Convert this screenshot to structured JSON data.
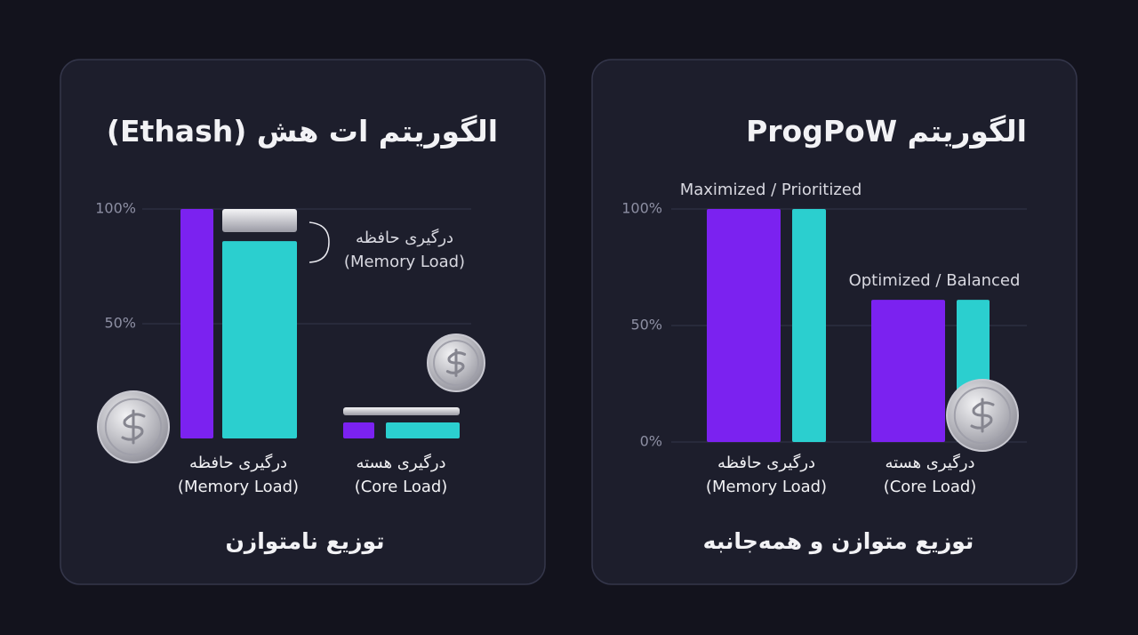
{
  "chart_data": [
    {
      "type": "bar",
      "title": "الگوریتم ات هش (Ethash)",
      "categories": [
        [
          "درگیری حافظه",
          "(Memory Load)"
        ],
        [
          "درگیری هسته",
          "(Core Load)"
        ]
      ],
      "series": [
        {
          "color": "#7b22f0",
          "values": [
            100,
            7
          ]
        },
        {
          "color": "#2bcfcf",
          "values": [
            86,
            7
          ]
        }
      ],
      "ylim": [
        0,
        100
      ],
      "yticks": [
        {
          "value": 50,
          "label": "50%"
        },
        {
          "value": 100,
          "label": "100%"
        }
      ],
      "grid": true,
      "annotation": [
        "درگیری حافظه",
        "(Memory Load)"
      ],
      "footer": "توزیع نامتوازن"
    },
    {
      "type": "bar",
      "title": "الگوریتم ProgPoW",
      "categories": [
        [
          "درگیری حافظه",
          "(Memory Load)"
        ],
        [
          "درگیری هسته",
          "(Core Load)"
        ]
      ],
      "series": [
        {
          "color": "#7b22f0",
          "values": [
            100,
            61
          ]
        },
        {
          "color": "#2bcfcf",
          "values": [
            100,
            61
          ]
        }
      ],
      "ylim": [
        0,
        100
      ],
      "yticks": [
        {
          "value": 0,
          "label": "0%"
        },
        {
          "value": 50,
          "label": "50%"
        },
        {
          "value": 100,
          "label": "100%"
        }
      ],
      "grid": true,
      "category_annotations": [
        "Maximized / Prioritized",
        "Optimized / Balanced"
      ],
      "footer": "توزیع متوازن و همه‌جانبه"
    }
  ]
}
